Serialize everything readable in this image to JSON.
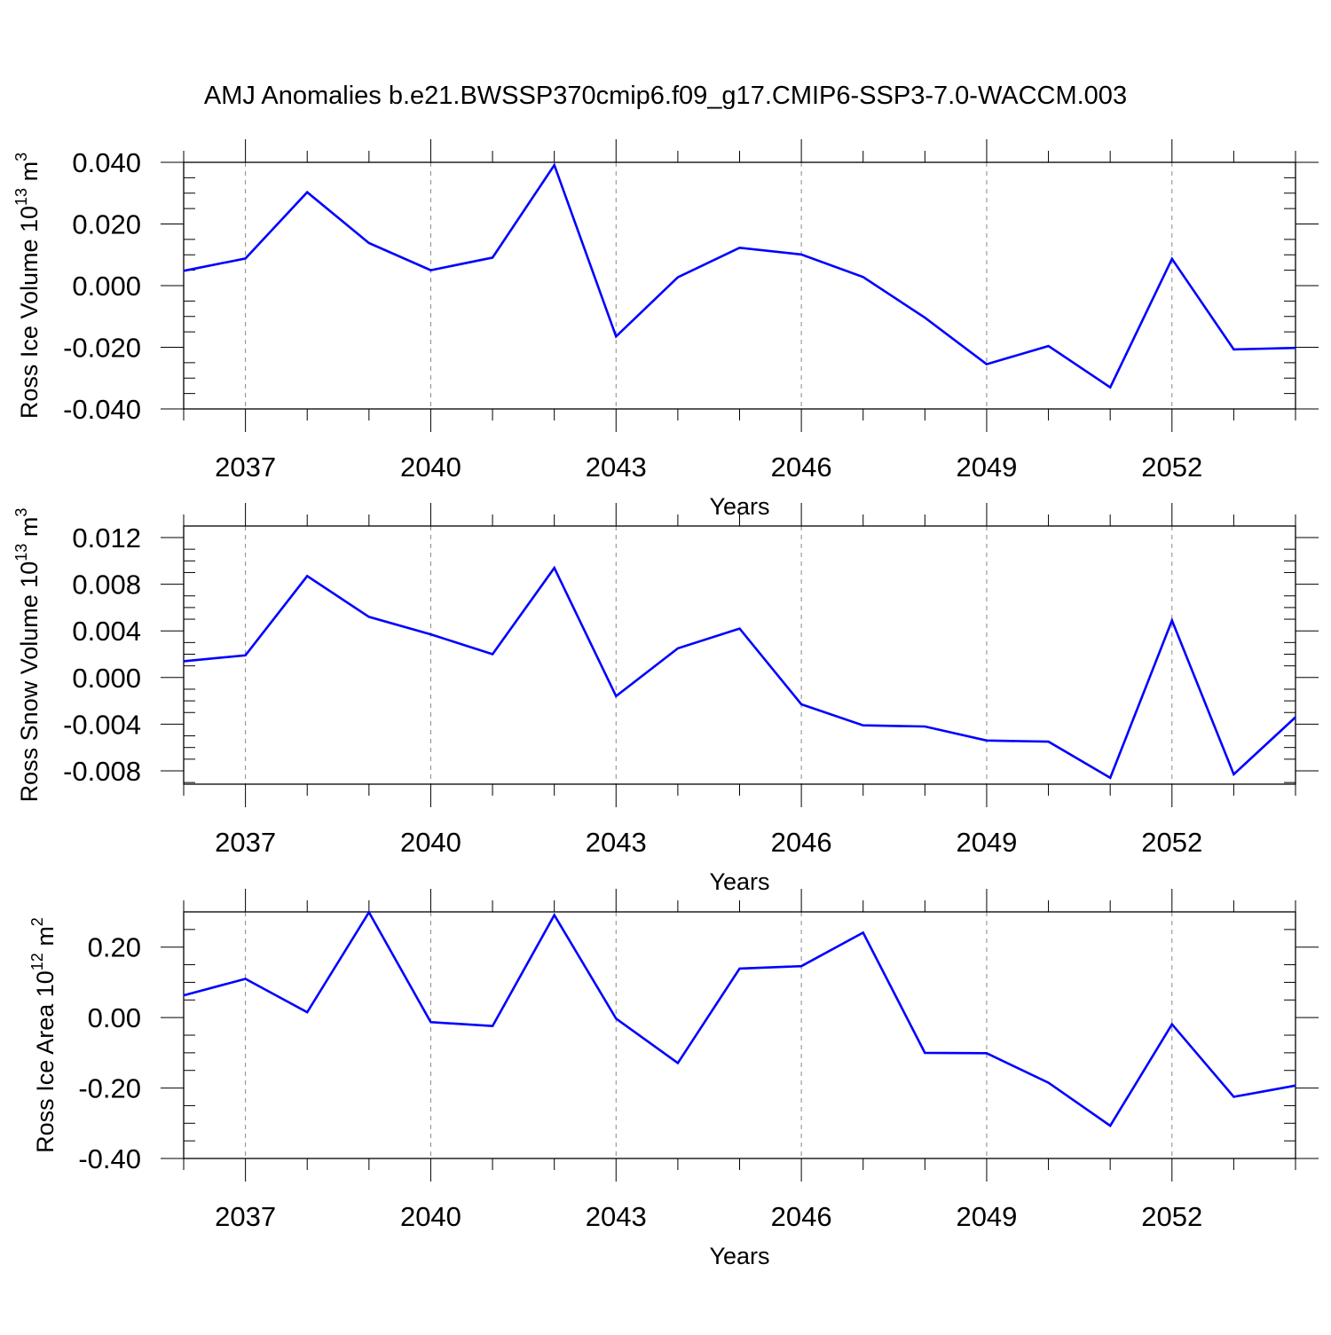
{
  "title": "AMJ Anomalies b.e21.BWSSP370cmip6.f09_g17.CMIP6-SSP3-7.0-WACCM.003",
  "colors": {
    "line": "#0000ff",
    "axis": "#000000",
    "grid": "#888888"
  },
  "chart_data": [
    {
      "type": "line",
      "ylabel_main": "Ross Ice Volume 10",
      "ylabel_exp": "13",
      "ylabel_unit": " m",
      "ylabel_unit_exp": "3",
      "xlabel": "Years",
      "xlim": [
        2036,
        2054
      ],
      "ylim": [
        -0.04,
        0.04
      ],
      "yticks": [
        -0.04,
        -0.02,
        0.0,
        0.02,
        0.04
      ],
      "ytick_labels": [
        "-0.040",
        "-0.020",
        "0.000",
        "0.020",
        "0.040"
      ],
      "xticks": [
        2037,
        2040,
        2043,
        2046,
        2049,
        2052
      ],
      "xtick_labels": [
        "2037",
        "2040",
        "2043",
        "2046",
        "2049",
        "2052"
      ],
      "grid": "vertical dashed at major x ticks",
      "x": [
        2036,
        2037,
        2038,
        2039,
        2040,
        2041,
        2042,
        2043,
        2044,
        2045,
        2046,
        2047,
        2048,
        2049,
        2050,
        2051,
        2052,
        2053,
        2054
      ],
      "series": [
        {
          "values": [
            0.0048,
            0.0088,
            0.0303,
            0.0138,
            0.005,
            0.0091,
            0.0391,
            -0.0165,
            0.0027,
            0.0123,
            0.0101,
            0.0028,
            -0.0104,
            -0.0255,
            -0.0196,
            -0.033,
            0.0087,
            -0.0207,
            -0.0202
          ]
        }
      ]
    },
    {
      "type": "line",
      "ylabel_main": "Ross Snow Volume 10",
      "ylabel_exp": "13",
      "ylabel_unit": " m",
      "ylabel_unit_exp": "3",
      "xlabel": "Years",
      "xlim": [
        2036,
        2054
      ],
      "ylim": [
        -0.009,
        0.012
      ],
      "yticks": [
        -0.008,
        -0.004,
        0.0,
        0.004,
        0.008,
        0.012
      ],
      "ytick_labels": [
        "-0.008",
        "-0.004",
        "0.000",
        "0.004",
        "0.008",
        "0.012"
      ],
      "xticks": [
        2037,
        2040,
        2043,
        2046,
        2049,
        2052
      ],
      "xtick_labels": [
        "2037",
        "2040",
        "2043",
        "2046",
        "2049",
        "2052"
      ],
      "grid": "vertical dashed at major x ticks",
      "x": [
        2036,
        2037,
        2038,
        2039,
        2040,
        2041,
        2042,
        2043,
        2044,
        2045,
        2046,
        2047,
        2048,
        2049,
        2050,
        2051,
        2052,
        2053,
        2054
      ],
      "series": [
        {
          "values": [
            0.0014,
            0.0019,
            0.0087,
            0.0052,
            0.0037,
            0.002,
            0.0094,
            -0.0016,
            0.0025,
            0.0042,
            -0.0023,
            -0.0041,
            -0.0042,
            -0.0054,
            -0.0055,
            -0.0086,
            0.0049,
            -0.0083,
            -0.0034
          ]
        }
      ]
    },
    {
      "type": "line",
      "ylabel_main": "Ross Ice Area 10",
      "ylabel_exp": "12",
      "ylabel_unit": " m",
      "ylabel_unit_exp": "2",
      "xlabel": "Years",
      "xlim": [
        2036,
        2054
      ],
      "ylim": [
        -0.4,
        0.3
      ],
      "yticks": [
        -0.4,
        -0.2,
        0.0,
        0.2
      ],
      "ytick_labels": [
        "-0.40",
        "-0.20",
        "0.00",
        "0.20"
      ],
      "xticks": [
        2037,
        2040,
        2043,
        2046,
        2049,
        2052
      ],
      "xtick_labels": [
        "2037",
        "2040",
        "2043",
        "2046",
        "2049",
        "2052"
      ],
      "grid": "vertical dashed at major x ticks",
      "x": [
        2036,
        2037,
        2038,
        2039,
        2040,
        2041,
        2042,
        2043,
        2044,
        2045,
        2046,
        2047,
        2048,
        2049,
        2050,
        2051,
        2052,
        2053,
        2054
      ],
      "series": [
        {
          "values": [
            0.063,
            0.11,
            0.015,
            0.299,
            -0.013,
            -0.024,
            0.291,
            -0.003,
            -0.129,
            0.139,
            0.146,
            0.241,
            -0.1,
            -0.101,
            -0.185,
            -0.307,
            -0.019,
            -0.225,
            -0.193
          ]
        }
      ]
    }
  ]
}
